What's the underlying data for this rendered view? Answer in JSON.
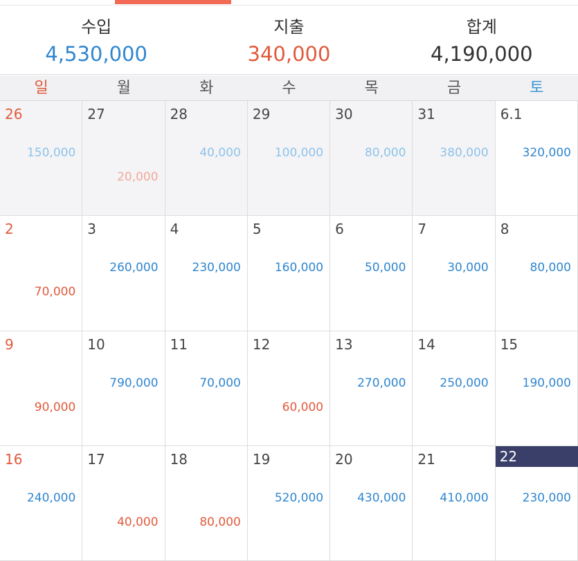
{
  "colors": {
    "accent": "#f26a55",
    "income": "#2f86cf",
    "expense": "#e05a3c",
    "income_faded": "#8ec2ea",
    "expense_faded": "#f2a99b",
    "today_bg": "#3a3f6a",
    "sunday": "#e05a3c",
    "saturday": "#3a96d6"
  },
  "summary": {
    "income_label": "수입",
    "income_value": "4,530,000",
    "expense_label": "지출",
    "expense_value": "340,000",
    "total_label": "합계",
    "total_value": "4,190,000"
  },
  "weekdays": [
    "일",
    "월",
    "화",
    "수",
    "목",
    "금",
    "토"
  ],
  "weeks": [
    [
      {
        "day": "26",
        "income": "150,000",
        "expense": "",
        "prev": true
      },
      {
        "day": "27",
        "income": "",
        "expense": "20,000",
        "prev": true
      },
      {
        "day": "28",
        "income": "40,000",
        "expense": "",
        "prev": true
      },
      {
        "day": "29",
        "income": "100,000",
        "expense": "",
        "prev": true
      },
      {
        "day": "30",
        "income": "80,000",
        "expense": "",
        "prev": true
      },
      {
        "day": "31",
        "income": "380,000",
        "expense": "",
        "prev": true
      },
      {
        "day": "6.1",
        "income": "320,000",
        "expense": ""
      }
    ],
    [
      {
        "day": "2",
        "income": "",
        "expense": "70,000"
      },
      {
        "day": "3",
        "income": "260,000",
        "expense": ""
      },
      {
        "day": "4",
        "income": "230,000",
        "expense": ""
      },
      {
        "day": "5",
        "income": "160,000",
        "expense": ""
      },
      {
        "day": "6",
        "income": "50,000",
        "expense": ""
      },
      {
        "day": "7",
        "income": "30,000",
        "expense": ""
      },
      {
        "day": "8",
        "income": "80,000",
        "expense": ""
      }
    ],
    [
      {
        "day": "9",
        "income": "",
        "expense": "90,000"
      },
      {
        "day": "10",
        "income": "790,000",
        "expense": ""
      },
      {
        "day": "11",
        "income": "70,000",
        "expense": ""
      },
      {
        "day": "12",
        "income": "",
        "expense": "60,000"
      },
      {
        "day": "13",
        "income": "270,000",
        "expense": ""
      },
      {
        "day": "14",
        "income": "250,000",
        "expense": ""
      },
      {
        "day": "15",
        "income": "190,000",
        "expense": ""
      }
    ],
    [
      {
        "day": "16",
        "income": "240,000",
        "expense": ""
      },
      {
        "day": "17",
        "income": "",
        "expense": "40,000"
      },
      {
        "day": "18",
        "income": "",
        "expense": "80,000"
      },
      {
        "day": "19",
        "income": "520,000",
        "expense": ""
      },
      {
        "day": "20",
        "income": "430,000",
        "expense": ""
      },
      {
        "day": "21",
        "income": "410,000",
        "expense": ""
      },
      {
        "day": "22",
        "income": "230,000",
        "expense": "",
        "today": true
      }
    ]
  ]
}
